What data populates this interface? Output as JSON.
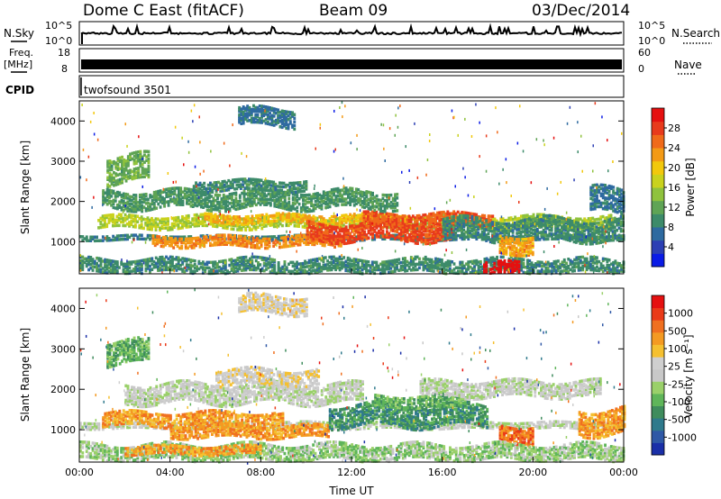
{
  "header": {
    "station": "Dome C East (fitACF)",
    "beam": "Beam 09",
    "date": "03/Dec/2014"
  },
  "side_labels": {
    "nsky": "N.Sky",
    "freq_line1": "Freq.",
    "freq_line2": "[MHz]",
    "cpid": "CPID",
    "nsearch": "N.Search",
    "nave": "Nave"
  },
  "cpid_value": "twofsound 3501",
  "noise_panel": {
    "left_ticks": [
      "10^5",
      "10^0"
    ],
    "right_ticks": [
      "10^5",
      "10^0"
    ]
  },
  "freq_panel": {
    "left_ticks": [
      "18",
      "8"
    ],
    "right_ticks": [
      "60",
      "0"
    ]
  },
  "colors": {
    "power": [
      "#0a1be6",
      "#2c3fb4",
      "#2e6aa0",
      "#3d8b6a",
      "#5fa455",
      "#8fc23d",
      "#c9d21d",
      "#f2c80c",
      "#f39a16",
      "#f06a1a",
      "#e83a1c",
      "#e51010"
    ],
    "velocity": [
      "#1a2fa8",
      "#2f58a6",
      "#2f7a8c",
      "#3f8c5d",
      "#5fb55a",
      "#9ad06a",
      "#c8c8c8",
      "#cfcfcf",
      "#f5c030",
      "#f49a22",
      "#f07020",
      "#ea3a18",
      "#e51010"
    ]
  },
  "chart_data": [
    {
      "type": "heatmap",
      "name": "power",
      "ylabel": "Slant Range [km]",
      "yticks": [
        "1000",
        "2000",
        "3000",
        "4000"
      ],
      "ylim": [
        200,
        4500
      ],
      "xlim": [
        0,
        24
      ],
      "colorbar": {
        "label": "Power [dB]",
        "ticks": [
          "4",
          "8",
          "12",
          "16",
          "20",
          "24",
          "28"
        ],
        "range": [
          0,
          32
        ]
      },
      "bands": [
        {
          "t0": 0.0,
          "t1": 24.0,
          "r": 1100,
          "w": 60,
          "v": 7
        },
        {
          "t0": 0.8,
          "t1": 23.5,
          "r": 1480,
          "w": 140,
          "v": 15
        },
        {
          "t0": 3.2,
          "t1": 11.5,
          "r": 1000,
          "w": 120,
          "v": 22
        },
        {
          "t0": 5.5,
          "t1": 14.5,
          "r": 1580,
          "w": 110,
          "v": 20
        },
        {
          "t0": 10.0,
          "t1": 16.5,
          "r": 1250,
          "w": 220,
          "v": 26
        },
        {
          "t0": 12.5,
          "t1": 18.2,
          "r": 1550,
          "w": 140,
          "v": 25
        },
        {
          "t0": 1.0,
          "t1": 14.0,
          "r": 2050,
          "w": 220,
          "v": 9
        },
        {
          "t0": 5.0,
          "t1": 10.0,
          "r": 2400,
          "w": 130,
          "v": 8
        },
        {
          "t0": 1.2,
          "t1": 3.0,
          "r": 2800,
          "w": 320,
          "v": 11
        },
        {
          "t0": 7.0,
          "t1": 9.5,
          "r": 4100,
          "w": 220,
          "v": 6
        },
        {
          "t0": 0.0,
          "t1": 24.0,
          "r": 400,
          "w": 170,
          "v": 8
        },
        {
          "t0": 17.8,
          "t1": 19.4,
          "r": 330,
          "w": 140,
          "v": 30
        },
        {
          "t0": 16.0,
          "t1": 24.0,
          "r": 1300,
          "w": 260,
          "v": 8
        },
        {
          "t0": 18.5,
          "t1": 20.0,
          "r": 950,
          "w": 220,
          "v": 21
        },
        {
          "t0": 22.5,
          "t1": 24.0,
          "r": 2000,
          "w": 300,
          "v": 6
        }
      ]
    },
    {
      "type": "heatmap",
      "name": "velocity",
      "ylabel": "Slant Range [km]",
      "xlabel": "Time UT",
      "yticks": [
        "1000",
        "2000",
        "3000",
        "4000"
      ],
      "ylim": [
        200,
        4500
      ],
      "xlim": [
        0,
        24
      ],
      "xticks": [
        "00:00",
        "04:00",
        "08:00",
        "12:00",
        "16:00",
        "20:00",
        "00:00"
      ],
      "colorbar": {
        "label": "Velocity [m s⁻¹]",
        "ticks": [
          "1000",
          "500",
          "100",
          "25",
          "-25",
          "-100",
          "-500",
          "-1000"
        ]
      },
      "bands": [
        {
          "t0": 0.0,
          "t1": 24.0,
          "r": 1100,
          "w": 70,
          "v": 6
        },
        {
          "t0": 2.0,
          "t1": 12.5,
          "r": 1900,
          "w": 240,
          "v": 6
        },
        {
          "t0": 6.0,
          "t1": 10.5,
          "r": 2300,
          "w": 200,
          "v": 7
        },
        {
          "t0": 1.0,
          "t1": 9.0,
          "r": 1250,
          "w": 160,
          "v": 9
        },
        {
          "t0": 4.0,
          "t1": 11.0,
          "r": 950,
          "w": 140,
          "v": 9
        },
        {
          "t0": 11.0,
          "t1": 18.0,
          "r": 1350,
          "w": 260,
          "v": 3
        },
        {
          "t0": 13.0,
          "t1": 17.0,
          "r": 1700,
          "w": 150,
          "v": 4
        },
        {
          "t0": 15.0,
          "t1": 23.0,
          "r": 2000,
          "w": 180,
          "v": 6
        },
        {
          "t0": 18.5,
          "t1": 20.0,
          "r": 900,
          "w": 220,
          "v": 10
        },
        {
          "t0": 0.0,
          "t1": 24.0,
          "r": 450,
          "w": 200,
          "v": 5
        },
        {
          "t0": 2.0,
          "t1": 8.0,
          "r": 500,
          "w": 110,
          "v": 9
        },
        {
          "t0": 1.2,
          "t1": 3.0,
          "r": 2900,
          "w": 280,
          "v": 4
        },
        {
          "t0": 7.0,
          "t1": 10.0,
          "r": 4100,
          "w": 220,
          "v": 7
        },
        {
          "t0": 22.0,
          "t1": 24.0,
          "r": 1200,
          "w": 300,
          "v": 9
        }
      ]
    }
  ]
}
